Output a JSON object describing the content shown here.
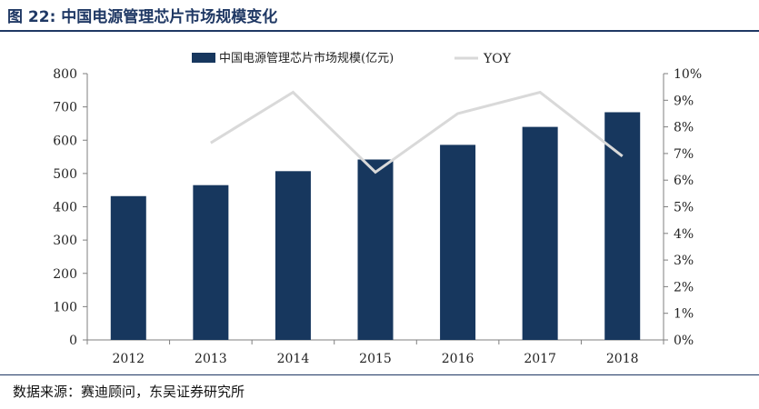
{
  "figure_label": "图 22:",
  "figure_title": "中国电源管理芯片市场规模变化",
  "source_text": "数据来源：赛迪顾问，东吴证券研究所",
  "colors": {
    "bar": "#17375e",
    "line": "#d9d9d9",
    "title": "#1f3864",
    "axis": "#7f7f7f"
  },
  "chart_data": {
    "type": "bar",
    "categories": [
      "2012",
      "2013",
      "2014",
      "2015",
      "2016",
      "2017",
      "2018"
    ],
    "series": [
      {
        "name": "中国电源管理芯片市场规模(亿元)",
        "type": "bar",
        "axis": "left",
        "values": [
          432,
          465,
          507,
          542,
          586,
          640,
          684
        ]
      },
      {
        "name": "YOY",
        "type": "line",
        "axis": "right",
        "values": [
          null,
          7.4,
          9.3,
          6.3,
          8.5,
          9.3,
          6.9
        ]
      }
    ],
    "y_left": {
      "min": 0,
      "max": 800,
      "ticks": [
        "0",
        "100",
        "200",
        "300",
        "400",
        "500",
        "600",
        "700",
        "800"
      ]
    },
    "y_right": {
      "min": 0,
      "max": 10,
      "ticks": [
        "0%",
        "1%",
        "2%",
        "3%",
        "4%",
        "5%",
        "6%",
        "7%",
        "8%",
        "9%",
        "10%"
      ]
    },
    "legend_position": "top"
  }
}
